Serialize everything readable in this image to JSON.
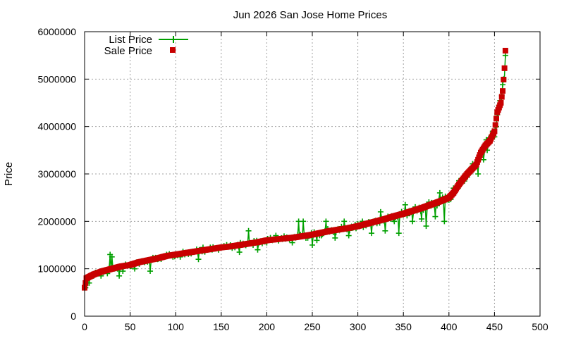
{
  "chart_data": {
    "type": "scatter",
    "title": "Jun 2026 San Jose Home Prices",
    "xlabel": "",
    "ylabel": "Price",
    "xlim": [
      0,
      500
    ],
    "ylim": [
      0,
      6000000
    ],
    "x_ticks": [
      0,
      50,
      100,
      150,
      200,
      250,
      300,
      350,
      400,
      450,
      500
    ],
    "y_ticks": [
      0,
      1000000,
      2000000,
      3000000,
      4000000,
      5000000,
      6000000
    ],
    "grid": true,
    "legend_position": "top-left",
    "series": [
      {
        "name": "List Price",
        "style": "line with plus markers",
        "color": "#00a000",
        "points": [
          [
            1,
            600000
          ],
          [
            5,
            700000
          ],
          [
            10,
            850000
          ],
          [
            18,
            850000
          ],
          [
            25,
            900000
          ],
          [
            28,
            1300000
          ],
          [
            30,
            1250000
          ],
          [
            33,
            1000000
          ],
          [
            38,
            850000
          ],
          [
            42,
            950000
          ],
          [
            50,
            1050000
          ],
          [
            55,
            1000000
          ],
          [
            60,
            1100000
          ],
          [
            65,
            1150000
          ],
          [
            72,
            950000
          ],
          [
            80,
            1200000
          ],
          [
            90,
            1300000
          ],
          [
            97,
            1250000
          ],
          [
            105,
            1250000
          ],
          [
            110,
            1300000
          ],
          [
            120,
            1350000
          ],
          [
            125,
            1200000
          ],
          [
            130,
            1450000
          ],
          [
            140,
            1400000
          ],
          [
            150,
            1450000
          ],
          [
            160,
            1500000
          ],
          [
            170,
            1350000
          ],
          [
            180,
            1800000
          ],
          [
            185,
            1500000
          ],
          [
            190,
            1400000
          ],
          [
            200,
            1550000
          ],
          [
            210,
            1700000
          ],
          [
            220,
            1650000
          ],
          [
            228,
            1550000
          ],
          [
            235,
            2000000
          ],
          [
            240,
            2000000
          ],
          [
            245,
            1650000
          ],
          [
            250,
            1500000
          ],
          [
            255,
            1600000
          ],
          [
            260,
            1700000
          ],
          [
            265,
            2000000
          ],
          [
            270,
            1800000
          ],
          [
            275,
            1650000
          ],
          [
            285,
            2000000
          ],
          [
            290,
            1700000
          ],
          [
            298,
            1850000
          ],
          [
            305,
            2000000
          ],
          [
            315,
            1750000
          ],
          [
            325,
            2200000
          ],
          [
            330,
            1800000
          ],
          [
            340,
            2000000
          ],
          [
            345,
            1750000
          ],
          [
            352,
            2350000
          ],
          [
            360,
            2000000
          ],
          [
            370,
            2050000
          ],
          [
            375,
            1900000
          ],
          [
            385,
            2100000
          ],
          [
            390,
            2600000
          ],
          [
            395,
            2000000
          ],
          [
            400,
            2450000
          ],
          [
            405,
            2700000
          ],
          [
            410,
            2700000
          ],
          [
            418,
            2950000
          ],
          [
            425,
            3050000
          ],
          [
            432,
            3000000
          ],
          [
            438,
            3300000
          ],
          [
            442,
            3500000
          ],
          [
            448,
            3900000
          ],
          [
            452,
            4000000
          ],
          [
            455,
            4450000
          ],
          [
            458,
            4650000
          ],
          [
            460,
            5000000
          ],
          [
            462,
            5500000
          ]
        ]
      },
      {
        "name": "Sale Price",
        "style": "square markers",
        "color": "#c80000",
        "curve_points": [
          [
            0,
            600000
          ],
          [
            2,
            800000
          ],
          [
            10,
            880000
          ],
          [
            20,
            950000
          ],
          [
            30,
            1000000
          ],
          [
            40,
            1050000
          ],
          [
            50,
            1080000
          ],
          [
            60,
            1140000
          ],
          [
            70,
            1180000
          ],
          [
            80,
            1220000
          ],
          [
            90,
            1270000
          ],
          [
            100,
            1300000
          ],
          [
            110,
            1330000
          ],
          [
            120,
            1360000
          ],
          [
            130,
            1390000
          ],
          [
            140,
            1420000
          ],
          [
            150,
            1450000
          ],
          [
            160,
            1470000
          ],
          [
            170,
            1500000
          ],
          [
            180,
            1530000
          ],
          [
            190,
            1560000
          ],
          [
            200,
            1600000
          ],
          [
            210,
            1620000
          ],
          [
            220,
            1640000
          ],
          [
            230,
            1660000
          ],
          [
            240,
            1690000
          ],
          [
            250,
            1720000
          ],
          [
            260,
            1760000
          ],
          [
            270,
            1800000
          ],
          [
            280,
            1830000
          ],
          [
            290,
            1860000
          ],
          [
            300,
            1900000
          ],
          [
            310,
            1950000
          ],
          [
            320,
            2000000
          ],
          [
            330,
            2050000
          ],
          [
            340,
            2110000
          ],
          [
            350,
            2160000
          ],
          [
            360,
            2220000
          ],
          [
            370,
            2280000
          ],
          [
            380,
            2350000
          ],
          [
            390,
            2420000
          ],
          [
            400,
            2500000
          ],
          [
            405,
            2600000
          ],
          [
            410,
            2750000
          ],
          [
            415,
            2880000
          ],
          [
            420,
            3000000
          ],
          [
            425,
            3100000
          ],
          [
            430,
            3200000
          ],
          [
            435,
            3450000
          ],
          [
            440,
            3600000
          ],
          [
            445,
            3700000
          ],
          [
            450,
            3900000
          ],
          [
            453,
            4300000
          ],
          [
            455,
            4400000
          ],
          [
            457,
            4500000
          ],
          [
            459,
            4750000
          ],
          [
            461,
            5230000
          ],
          [
            462,
            5600000
          ]
        ],
        "count": 463
      }
    ]
  }
}
